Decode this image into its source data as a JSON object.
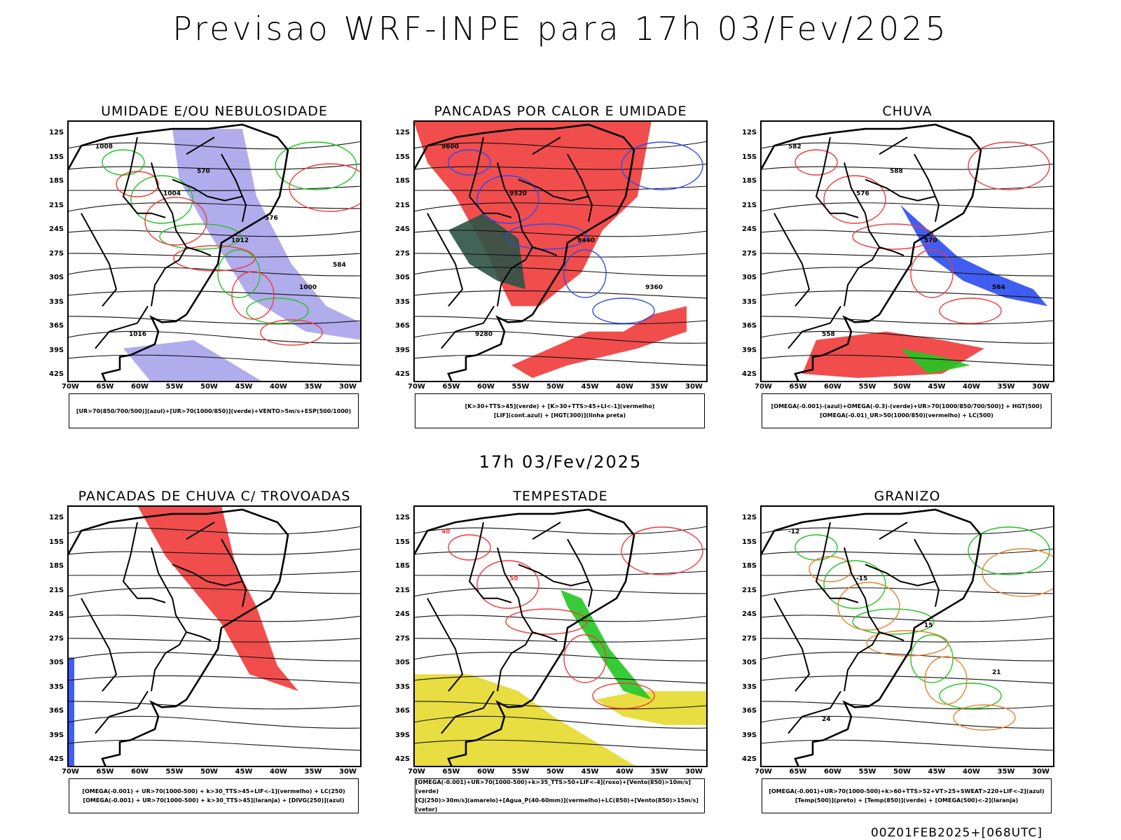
{
  "title": "Previsao WRF-INPE  para 17h 03/Fev/2025",
  "subtitle": "17h 03/Fev/2025",
  "footer": "00Z01FEB2025+[068UTC]",
  "axes": {
    "lat": [
      "12S",
      "15S",
      "18S",
      "21S",
      "24S",
      "27S",
      "30S",
      "33S",
      "36S",
      "39S",
      "42S"
    ],
    "lon": [
      "70W",
      "65W",
      "60W",
      "55W",
      "50W",
      "45W",
      "40W",
      "35W",
      "30W"
    ]
  },
  "colors": {
    "red": "#f03a3a",
    "green": "#22c522",
    "blue": "#2a4cf0",
    "lavender": "#a9a3ea",
    "darkgreen": "#2d5346",
    "yellow": "#e6d92c",
    "orange": "#e8822a"
  },
  "panels": [
    {
      "title": "UMIDADE E/OU NEBULOSIDADE",
      "legend": [
        "[UR>70(850/700/500)](azul)+[UR>70(1000/850)](verde)+VENTO>5m/s+ESP(500/1000)"
      ],
      "contour_labels": [
        "1008",
        "1004",
        "1012",
        "1000",
        "1016",
        "570",
        "576",
        "584"
      ]
    },
    {
      "title": "PANCADAS POR CALOR E UMIDADE",
      "legend": [
        "[K>30+TTS>45](verde) + [K>30+TTS>45+LI<-1](vermelho)",
        "[LIF](cont.azul) + [HGT(300)](linha preta)"
      ],
      "contour_labels": [
        "9600",
        "9520",
        "9440",
        "9360",
        "9280"
      ]
    },
    {
      "title": "CHUVA",
      "legend": [
        "[OMEGA(-0.001)-(azul)+OMEGA(-0.3)-(verde)+UR>70(1000/850/700/500)] + HGT(500)",
        "[OMEGA(-0.01)_UR>50(1000/850)(vermelho) + LC(500)"
      ],
      "contour_labels": [
        "582",
        "576",
        "570",
        "564",
        "558",
        "588"
      ]
    },
    {
      "title": "PANCADAS DE CHUVA C/ TROVOADAS",
      "legend": [
        "[OMEGA(-0.001) + UR>70(1000-500) + k>30_TTS>45+LIF<-1](vermelho) + LC(250)",
        "[OMEGA(-0.001) + UR>70(1000-500) + k>30_TTS>45](laranja) + [DIVG(250)](azul)"
      ],
      "contour_labels": []
    },
    {
      "title": "TEMPESTADE",
      "legend": [
        "[OMEGA(-0.001)+UR>70(1000-500)+k>35_TTS>50+LIF<-4](roxo)+[Vento(850)>10m/s](verde)",
        "[CJ(250)>30m/s](amarelo)+[Agua_P(40-60mm)](vermelho)+LC(850)+[Vento(850)>15m/s](vetor)"
      ],
      "contour_labels": [
        "40",
        "50"
      ]
    },
    {
      "title": "GRANIZO",
      "legend": [
        "[OMEGA(-0.001)+UR>70(1000-500)+k>60+TTS>52+VT>25+SWEAT>220+LIF<-2](azul)",
        "[Temp(500)](preto) + [Temp(850)](verde) + [OMEGA(500)<-2](laranja)"
      ],
      "contour_labels": [
        "-12",
        "-15",
        "15",
        "21",
        "24"
      ]
    }
  ]
}
